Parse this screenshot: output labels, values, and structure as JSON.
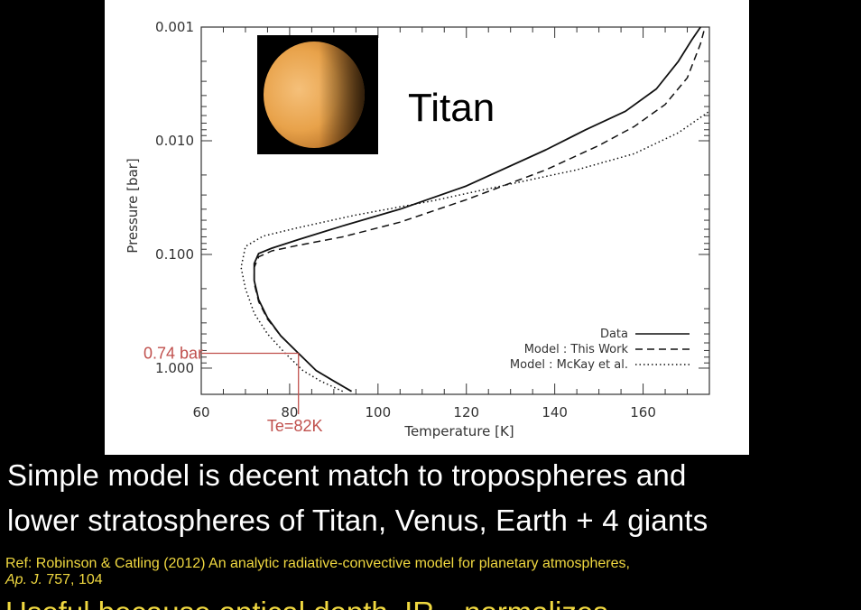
{
  "slide": {
    "body_line_1": "Simple model is decent match to tropospheres and",
    "body_line_2": "lower stratospheres of Titan, Venus, Earth + 4 giants",
    "ref_prefix": "Ref: Robinson & Catling (2012) An analytic radiative-convective model for planetary atmospheres,",
    "ref_journal": "Ap. J.",
    "ref_volume": " 757, 104",
    "cut_text": "Useful because optical depth, IR…normalizes"
  },
  "colors": {
    "background": "#000000",
    "panel": "#ffffff",
    "annotation": "#c0504d",
    "ref_text": "#f0d840",
    "moon": "#e8a24a"
  },
  "icons": {
    "titan_image": "titan-moon-image"
  },
  "chart_data": {
    "type": "line",
    "title": "Titan",
    "xlabel": "Temperature [K]",
    "ylabel": "Pressure [bar]",
    "xlim": [
      60,
      175
    ],
    "ylim": [
      1.7,
      0.001
    ],
    "y_scale": "log",
    "y_inverted": true,
    "grid": false,
    "legend_position": "lower-right",
    "x_ticks": [
      60,
      80,
      100,
      120,
      140,
      160
    ],
    "x_tick_labels": [
      "60",
      "80",
      "100",
      "120",
      "140",
      "160"
    ],
    "y_ticks": [
      0.001,
      0.01,
      0.1,
      1.0
    ],
    "y_tick_labels": [
      "0.001",
      "0.010",
      "0.100",
      "1.000"
    ],
    "series": [
      {
        "name": "Data",
        "style": "solid",
        "points": [
          [
            94,
            1.6
          ],
          [
            90,
            1.3
          ],
          [
            86,
            1.05
          ],
          [
            82,
            0.74
          ],
          [
            78,
            0.52
          ],
          [
            75,
            0.36
          ],
          [
            73,
            0.25
          ],
          [
            72,
            0.17
          ],
          [
            72,
            0.12
          ],
          [
            73,
            0.098
          ],
          [
            76,
            0.088
          ],
          [
            82,
            0.074
          ],
          [
            92,
            0.056
          ],
          [
            105,
            0.04
          ],
          [
            120,
            0.025
          ],
          [
            138,
            0.012
          ],
          [
            147,
            0.008
          ],
          [
            156,
            0.0055
          ],
          [
            163,
            0.0035
          ],
          [
            168,
            0.002
          ],
          [
            171,
            0.0013
          ],
          [
            173,
            0.001
          ]
        ]
      },
      {
        "name": "Model : This Work",
        "style": "dashed",
        "points": [
          [
            94,
            1.6
          ],
          [
            90,
            1.3
          ],
          [
            86,
            1.05
          ],
          [
            82,
            0.74
          ],
          [
            78,
            0.52
          ],
          [
            75,
            0.37
          ],
          [
            73,
            0.26
          ],
          [
            72,
            0.18
          ],
          [
            72,
            0.13
          ],
          [
            73,
            0.105
          ],
          [
            76,
            0.093
          ],
          [
            82,
            0.083
          ],
          [
            92,
            0.07
          ],
          [
            105,
            0.052
          ],
          [
            120,
            0.033
          ],
          [
            138,
            0.018
          ],
          [
            150,
            0.011
          ],
          [
            158,
            0.0075
          ],
          [
            165,
            0.0048
          ],
          [
            170,
            0.0028
          ],
          [
            173,
            0.0014
          ],
          [
            174,
            0.001
          ]
        ]
      },
      {
        "name": "Model : McKay et al.",
        "style": "dotted",
        "points": [
          [
            92,
            1.6
          ],
          [
            87,
            1.3
          ],
          [
            83,
            1.05
          ],
          [
            79,
            0.74
          ],
          [
            75,
            0.5
          ],
          [
            72,
            0.33
          ],
          [
            70,
            0.2
          ],
          [
            69,
            0.13
          ],
          [
            70,
            0.085
          ],
          [
            74,
            0.069
          ],
          [
            82,
            0.058
          ],
          [
            95,
            0.045
          ],
          [
            112,
            0.034
          ],
          [
            130,
            0.024
          ],
          [
            145,
            0.018
          ],
          [
            158,
            0.013
          ],
          [
            168,
            0.0085
          ],
          [
            175,
            0.0055
          ]
        ]
      }
    ],
    "annotations": [
      {
        "text": "0.74 bar",
        "x": 82,
        "y": 0.74
      },
      {
        "text": "Te=82K",
        "x": 82,
        "y": 0.74
      }
    ]
  }
}
